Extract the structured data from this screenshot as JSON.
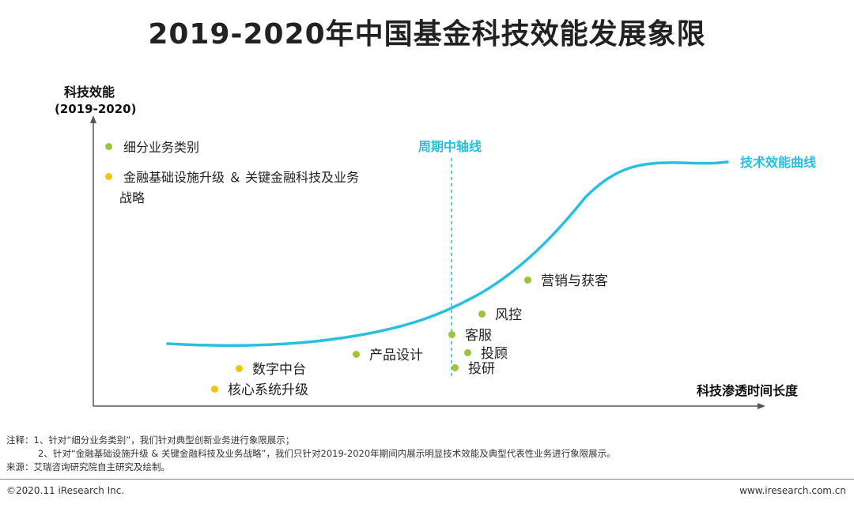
{
  "title": "2019-2020年中国基金科技效能发展象限",
  "y_axis": {
    "label": "科技效能",
    "sublabel": "(2019-2020)"
  },
  "x_axis": {
    "label": "科技渗透时间长度"
  },
  "legend": [
    {
      "label": "细分业务类别",
      "color": "#9dc33b"
    },
    {
      "label": "金融基础设施升级 ＆ 关键金融科技及业务",
      "label2": "战略",
      "color": "#f5c400"
    }
  ],
  "callouts": {
    "midline": "周期中轴线",
    "curve": "技术效能曲线"
  },
  "colors": {
    "curve": "#27c0e0",
    "green": "#9dc33b",
    "yellow": "#f5c400"
  },
  "points": [
    {
      "label": "营销与获客",
      "category": "green"
    },
    {
      "label": "风控",
      "category": "green"
    },
    {
      "label": "客服",
      "category": "green"
    },
    {
      "label": "投顾",
      "category": "green"
    },
    {
      "label": "投研",
      "category": "green"
    },
    {
      "label": "产品设计",
      "category": "green"
    },
    {
      "label": "数字中台",
      "category": "yellow"
    },
    {
      "label": "核心系统升级",
      "category": "yellow"
    }
  ],
  "notes": [
    "注释：1、针对“细分业务类别”，我们针对典型创新业务进行象限展示；",
    "2、针对“金融基础设施升级 & 关键金融科技及业务战略”，我们只针对2019-2020年期间内展示明显技术效能及典型代表性业务进行象限展示。",
    "来源：艾瑞咨询研究院自主研究及绘制。"
  ],
  "footer": {
    "left": "©2020.11 iResearch Inc.",
    "right": "www.iresearch.com.cn"
  }
}
